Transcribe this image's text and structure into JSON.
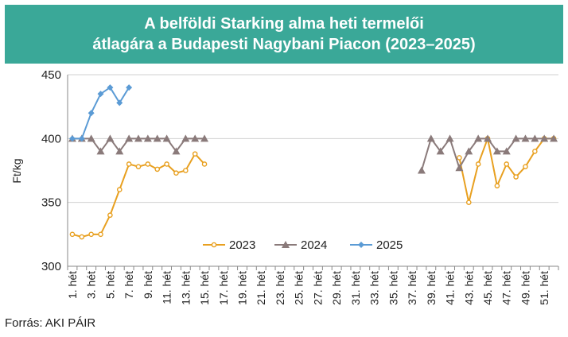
{
  "chart_data": {
    "type": "line",
    "title_lines": [
      "A belföldi Starking alma heti termelői",
      "átlagára a Budapesti Nagybani Piacon (2023–2025)"
    ],
    "ylabel": "Ft/kg",
    "xlabel": "",
    "ylim": [
      300,
      450
    ],
    "yticks": [
      "300",
      "350",
      "400",
      "450"
    ],
    "categories": [
      "1. hét",
      "2. hét",
      "3. hét",
      "4. hét",
      "5. hét",
      "6. hét",
      "7. hét",
      "8. hét",
      "9. hét",
      "10. hét",
      "11. hét",
      "12. hét",
      "13. hét",
      "14. hét",
      "15. hét",
      "16. hét",
      "17. hét",
      "18. hét",
      "19. hét",
      "20. hét",
      "21. hét",
      "22. hét",
      "23. hét",
      "24. hét",
      "25. hét",
      "26. hét",
      "27. hét",
      "28. hét",
      "29. hét",
      "30. hét",
      "31. hét",
      "32. hét",
      "33. hét",
      "34. hét",
      "35. hét",
      "36. hét",
      "37. hét",
      "38. hét",
      "39. hét",
      "40. hét",
      "41. hét",
      "42. hét",
      "43. hét",
      "44. hét",
      "45. hét",
      "46. hét",
      "47. hét",
      "48. hét",
      "49. hét",
      "50. hét",
      "51. hét",
      "52. hét"
    ],
    "shown_tick_labels": [
      "1. hét",
      "3. hét",
      "5. hét",
      "7. hét",
      "9. hét",
      "11. hét",
      "13. hét",
      "15. hét",
      "17. hét",
      "19. hét",
      "21. hét",
      "23. hét",
      "25. hét",
      "27. hét",
      "29. hét",
      "31. hét",
      "33. hét",
      "35. hét",
      "37. hét",
      "39. hét",
      "41. hét",
      "43. hét",
      "45. hét",
      "47. hét",
      "49. hét",
      "51. hét"
    ],
    "legend_position": "inside-bottom-center",
    "grid": "horizontal",
    "series": [
      {
        "name": "2023",
        "color": "#e8a020",
        "marker": "circle",
        "values": [
          325,
          323,
          325,
          325,
          340,
          360,
          380,
          378,
          380,
          376,
          380,
          373,
          375,
          388,
          380,
          null,
          null,
          null,
          null,
          null,
          null,
          null,
          null,
          null,
          null,
          null,
          null,
          null,
          null,
          null,
          null,
          null,
          null,
          null,
          null,
          null,
          null,
          null,
          null,
          null,
          null,
          385,
          350,
          380,
          400,
          363,
          380,
          370,
          378,
          390,
          400,
          400
        ]
      },
      {
        "name": "2024",
        "color": "#8a7a7a",
        "marker": "triangle",
        "values": [
          400,
          400,
          400,
          390,
          400,
          390,
          400,
          400,
          400,
          400,
          400,
          390,
          400,
          400,
          400,
          null,
          null,
          null,
          null,
          null,
          null,
          null,
          null,
          null,
          null,
          null,
          null,
          null,
          null,
          null,
          null,
          null,
          null,
          null,
          null,
          null,
          null,
          375,
          400,
          390,
          400,
          377,
          390,
          400,
          400,
          390,
          390,
          400,
          400,
          400,
          400,
          400
        ]
      },
      {
        "name": "2025",
        "color": "#5b9bd5",
        "marker": "diamond",
        "values": [
          400,
          400,
          420,
          435,
          440,
          428,
          440,
          null,
          null,
          null,
          null,
          null,
          null,
          null,
          null,
          null,
          null,
          null,
          null,
          null,
          null,
          null,
          null,
          null,
          null,
          null,
          null,
          null,
          null,
          null,
          null,
          null,
          null,
          null,
          null,
          null,
          null,
          null,
          null,
          null,
          null,
          null,
          null,
          null,
          null,
          null,
          null,
          null,
          null,
          null,
          null,
          null
        ]
      }
    ],
    "source": "Forrás: AKI PÁIR"
  }
}
